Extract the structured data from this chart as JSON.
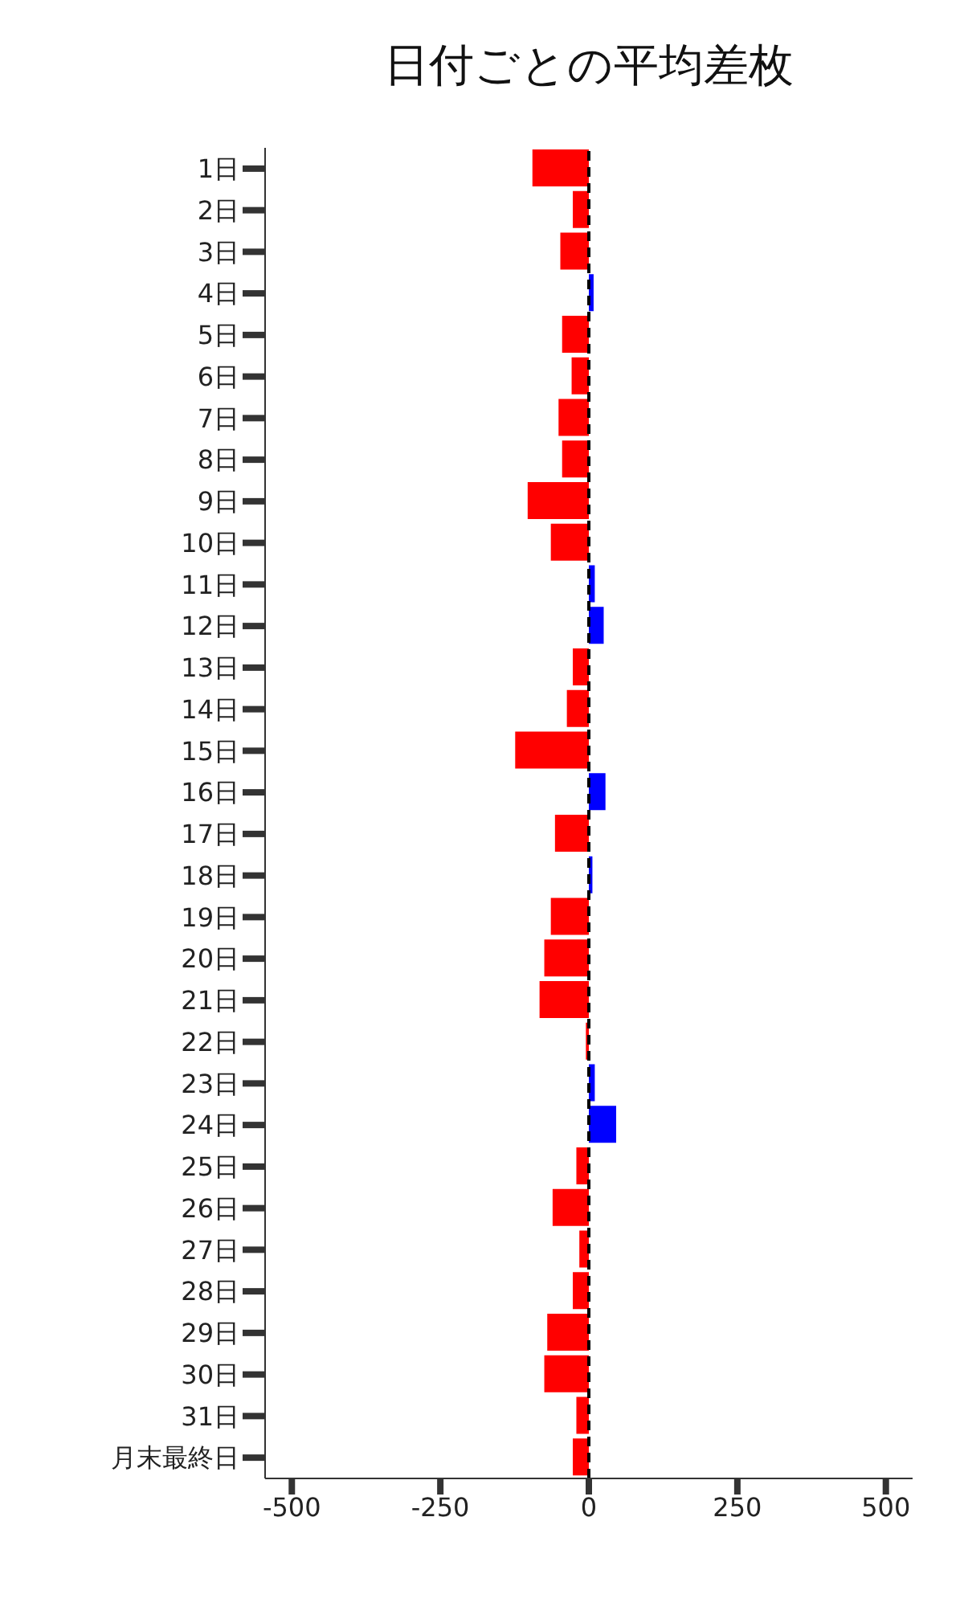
{
  "chart_data": {
    "type": "bar",
    "orientation": "horizontal",
    "title": "日付ごとの平均差枚",
    "categories": [
      "1日",
      "2日",
      "3日",
      "4日",
      "5日",
      "6日",
      "7日",
      "8日",
      "9日",
      "10日",
      "11日",
      "12日",
      "13日",
      "14日",
      "15日",
      "16日",
      "17日",
      "18日",
      "19日",
      "20日",
      "21日",
      "22日",
      "23日",
      "24日",
      "25日",
      "26日",
      "27日",
      "28日",
      "29日",
      "30日",
      "31日",
      "月末最終日"
    ],
    "values": [
      -95,
      -27,
      -48,
      8,
      -45,
      -29,
      -51,
      -45,
      -103,
      -64,
      10,
      25,
      -27,
      -37,
      -124,
      28,
      -57,
      6,
      -64,
      -75,
      -83,
      -5,
      10,
      46,
      -21,
      -61,
      -16,
      -27,
      -70,
      -75,
      -21,
      -27
    ],
    "colors": [
      "#ff0000",
      "#ff0000",
      "#ff0000",
      "#0000ff",
      "#ff0000",
      "#ff0000",
      "#ff0000",
      "#ff0000",
      "#ff0000",
      "#ff0000",
      "#0000ff",
      "#0000ff",
      "#ff0000",
      "#ff0000",
      "#ff0000",
      "#0000ff",
      "#ff0000",
      "#0000ff",
      "#ff0000",
      "#ff0000",
      "#ff0000",
      "#ff0000",
      "#0000ff",
      "#0000ff",
      "#ff0000",
      "#ff0000",
      "#ff0000",
      "#ff0000",
      "#ff0000",
      "#ff0000",
      "#ff0000",
      "#ff0000"
    ],
    "xlim": [
      -545,
      545
    ],
    "xticks": [
      -500,
      -250,
      0,
      250,
      500
    ],
    "ref_lines": [
      {
        "axis": "x",
        "value": 0,
        "color": "#000000",
        "line_style": "dashed"
      }
    ],
    "grid": false,
    "legend": false
  }
}
